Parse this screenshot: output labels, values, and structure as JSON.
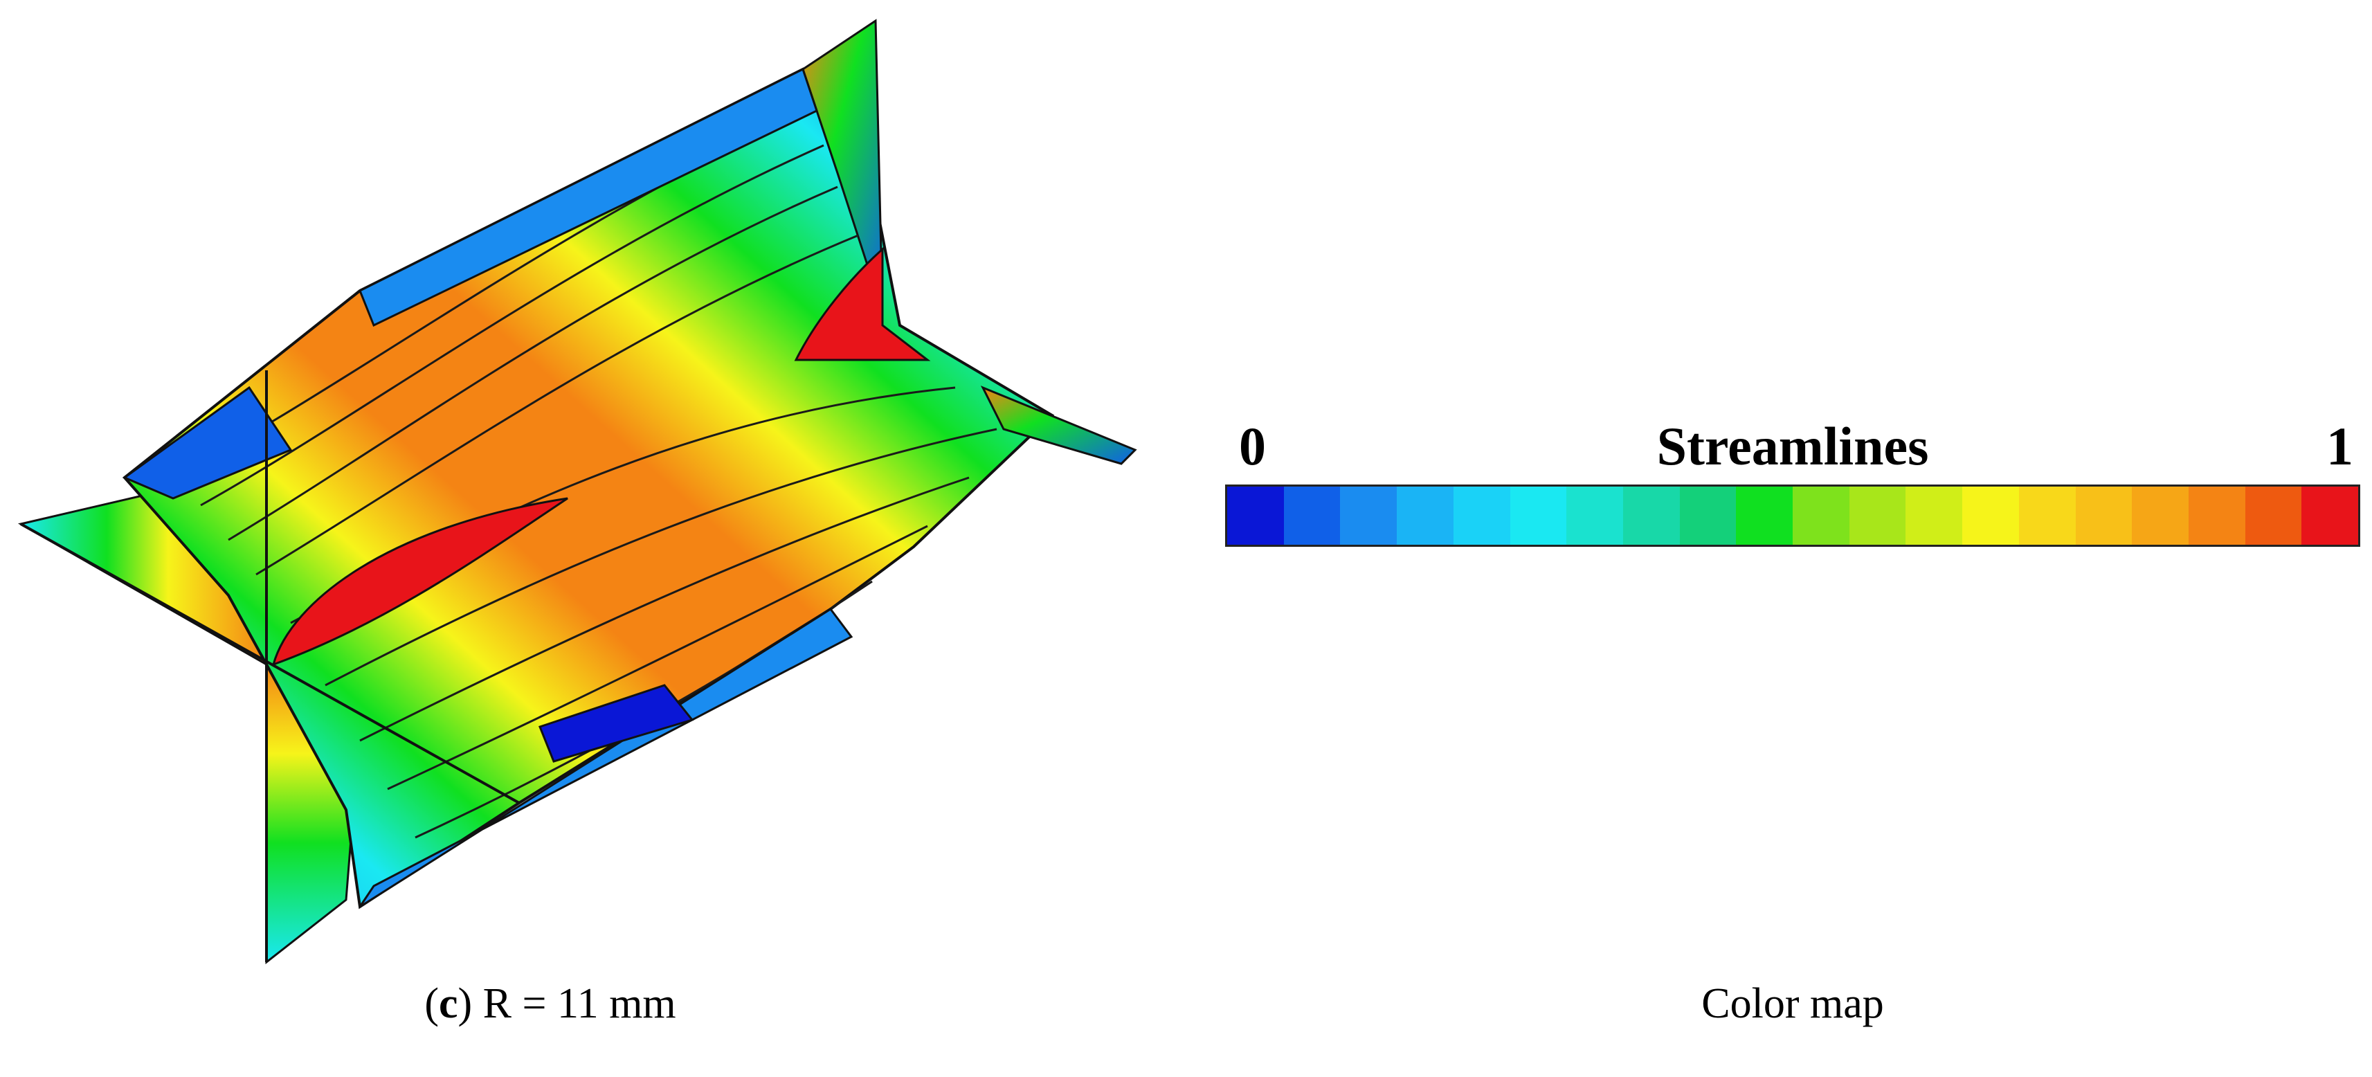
{
  "figure": {
    "left_panel_caption_letter": "c",
    "left_panel_caption_text": " R = 11 mm",
    "right_panel_caption": "Color map"
  },
  "colorbar": {
    "title": "Streamlines",
    "min_label": "0",
    "max_label": "1",
    "colors": [
      "#0a17d6",
      "#1060e8",
      "#1a8cf0",
      "#1ab4f5",
      "#1ad2f7",
      "#1ae8f2",
      "#1ae2cf",
      "#18d8a8",
      "#14d07a",
      "#10e020",
      "#7ee21c",
      "#a8e61a",
      "#d0ee18",
      "#f6f41a",
      "#f8d81a",
      "#f8c018",
      "#f6a616",
      "#f48414",
      "#ee5a10",
      "#e8141a"
    ]
  },
  "legend_palette": {
    "blue_dark": "#0a17d6",
    "cyan": "#1ae8f2",
    "green": "#10e020",
    "yellow": "#f6f41a",
    "orange": "#f48414",
    "red": "#e8141a"
  }
}
